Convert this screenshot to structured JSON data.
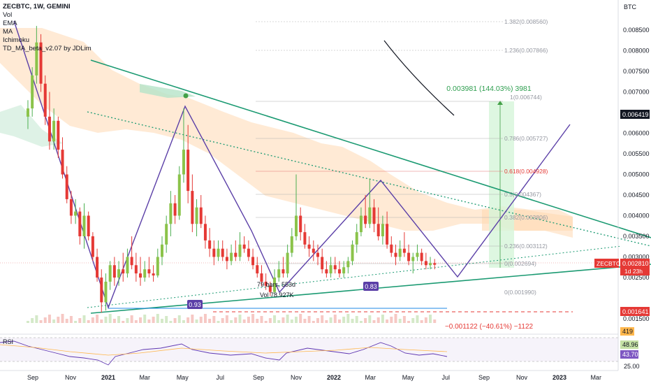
{
  "header": {
    "symbol_line": "ZECBTC, 1W, GEMINI",
    "indicators": [
      "Vol",
      "EMA",
      "MA",
      "Ichimoku",
      "TD_MA_beta_v2.07 by JDLim"
    ]
  },
  "price_axis": {
    "unit": "BTC",
    "ticks": [
      "0.008500",
      "0.008000",
      "0.007500",
      "0.007000",
      "0.006500",
      "0.006000",
      "0.005500",
      "0.005000",
      "0.004500",
      "0.004000",
      "0.003500",
      "0.003000",
      "0.002500",
      "0.001500"
    ]
  },
  "tags": {
    "current_symbol": "ZECBTC",
    "current_price": "0.002810",
    "countdown": "1d 23h",
    "level_high": "0.006419",
    "level_low": "0.001641",
    "vol_ma": "419",
    "rsi_a": "48.96",
    "rsi_b": "43.70",
    "rsi_axis": "25.00"
  },
  "fib_labels": [
    "1.382(0.008560)",
    "1.236(0.007866)",
    "1(0.006744)",
    "0.786(0.005727)",
    "0.618(0.004928)",
    "0.5(0.004367)",
    "0.382(0.003806)",
    "0.236(0.003112)",
    "0(0.002694)",
    "0(0.001990)"
  ],
  "annotations": {
    "measure_up": "0.003981 (144.03%) 3981",
    "measure_down": "−0.001122 (−40.61%) −1122",
    "bars_text": "79 bars, 553d",
    "vol_text": "Vol 78.927K",
    "badge_1": "0.93",
    "badge_2": "0.83",
    "rsi_label": "RSI"
  },
  "time_axis": [
    "Sep",
    "Nov",
    "2021",
    "Mar",
    "May",
    "Jul",
    "Sep",
    "Nov",
    "2022",
    "Mar",
    "May",
    "Jul",
    "Sep",
    "Nov",
    "2023",
    "Mar"
  ],
  "chart_data": {
    "type": "candlestick",
    "title": "ZECBTC, 1W, GEMINI",
    "ylabel": "BTC",
    "ylim": [
      0.0013,
      0.0088
    ],
    "candles": [
      {
        "t": "2020-08-24",
        "o": 0.0064,
        "h": 0.0068,
        "l": 0.0061,
        "c": 0.0066
      },
      {
        "t": "2020-08-31",
        "o": 0.0066,
        "h": 0.0076,
        "l": 0.0064,
        "c": 0.0074
      },
      {
        "t": "2020-09-07",
        "o": 0.0074,
        "h": 0.0086,
        "l": 0.0072,
        "c": 0.0082
      },
      {
        "t": "2020-09-14",
        "o": 0.0082,
        "h": 0.0084,
        "l": 0.007,
        "c": 0.0072
      },
      {
        "t": "2020-09-21",
        "o": 0.0072,
        "h": 0.0074,
        "l": 0.0062,
        "c": 0.0064
      },
      {
        "t": "2020-09-28",
        "o": 0.0064,
        "h": 0.007,
        "l": 0.0056,
        "c": 0.0058
      },
      {
        "t": "2020-10-05",
        "o": 0.0058,
        "h": 0.0066,
        "l": 0.0056,
        "c": 0.0063
      },
      {
        "t": "2020-10-12",
        "o": 0.0063,
        "h": 0.0064,
        "l": 0.0054,
        "c": 0.0056
      },
      {
        "t": "2020-10-19",
        "o": 0.0056,
        "h": 0.0059,
        "l": 0.0049,
        "c": 0.005
      },
      {
        "t": "2020-10-26",
        "o": 0.005,
        "h": 0.0052,
        "l": 0.0043,
        "c": 0.0044
      },
      {
        "t": "2020-11-02",
        "o": 0.0044,
        "h": 0.0046,
        "l": 0.0038,
        "c": 0.004
      },
      {
        "t": "2020-11-09",
        "o": 0.004,
        "h": 0.0044,
        "l": 0.0038,
        "c": 0.0041
      },
      {
        "t": "2020-11-16",
        "o": 0.0041,
        "h": 0.0042,
        "l": 0.0033,
        "c": 0.0035
      },
      {
        "t": "2020-11-23",
        "o": 0.0035,
        "h": 0.0043,
        "l": 0.0032,
        "c": 0.004
      },
      {
        "t": "2020-11-30",
        "o": 0.004,
        "h": 0.0041,
        "l": 0.0034,
        "c": 0.0035
      },
      {
        "t": "2020-12-07",
        "o": 0.0035,
        "h": 0.0036,
        "l": 0.0029,
        "c": 0.003
      },
      {
        "t": "2020-12-14",
        "o": 0.003,
        "h": 0.0032,
        "l": 0.0024,
        "c": 0.0025
      },
      {
        "t": "2020-12-21",
        "o": 0.0025,
        "h": 0.0027,
        "l": 0.00165,
        "c": 0.0019
      },
      {
        "t": "2020-12-28",
        "o": 0.0019,
        "h": 0.0026,
        "l": 0.0017,
        "c": 0.0024
      },
      {
        "t": "2021-01-04",
        "o": 0.0024,
        "h": 0.0029,
        "l": 0.0022,
        "c": 0.0028
      },
      {
        "t": "2021-01-11",
        "o": 0.0028,
        "h": 0.003,
        "l": 0.0023,
        "c": 0.0025
      },
      {
        "t": "2021-01-18",
        "o": 0.0025,
        "h": 0.0029,
        "l": 0.0023,
        "c": 0.0027
      },
      {
        "t": "2021-01-25",
        "o": 0.0027,
        "h": 0.0031,
        "l": 0.0024,
        "c": 0.0026
      },
      {
        "t": "2021-02-01",
        "o": 0.0026,
        "h": 0.0032,
        "l": 0.0025,
        "c": 0.003
      },
      {
        "t": "2021-02-08",
        "o": 0.003,
        "h": 0.0035,
        "l": 0.0027,
        "c": 0.0028
      },
      {
        "t": "2021-02-15",
        "o": 0.0028,
        "h": 0.0031,
        "l": 0.0024,
        "c": 0.0026
      },
      {
        "t": "2021-02-22",
        "o": 0.0026,
        "h": 0.003,
        "l": 0.0023,
        "c": 0.0025
      },
      {
        "t": "2021-03-01",
        "o": 0.0025,
        "h": 0.0029,
        "l": 0.0024,
        "c": 0.0027
      },
      {
        "t": "2021-03-08",
        "o": 0.0027,
        "h": 0.003,
        "l": 0.0025,
        "c": 0.0026
      },
      {
        "t": "2021-03-15",
        "o": 0.0026,
        "h": 0.0028,
        "l": 0.0024,
        "c": 0.00255
      },
      {
        "t": "2021-03-22",
        "o": 0.00255,
        "h": 0.0032,
        "l": 0.0025,
        "c": 0.003
      },
      {
        "t": "2021-03-29",
        "o": 0.003,
        "h": 0.0035,
        "l": 0.0028,
        "c": 0.0033
      },
      {
        "t": "2021-04-05",
        "o": 0.0033,
        "h": 0.004,
        "l": 0.0031,
        "c": 0.0038
      },
      {
        "t": "2021-04-12",
        "o": 0.0038,
        "h": 0.0046,
        "l": 0.0035,
        "c": 0.0043
      },
      {
        "t": "2021-04-19",
        "o": 0.0043,
        "h": 0.0045,
        "l": 0.0038,
        "c": 0.004
      },
      {
        "t": "2021-04-26",
        "o": 0.004,
        "h": 0.0052,
        "l": 0.0039,
        "c": 0.005
      },
      {
        "t": "2021-05-03",
        "o": 0.005,
        "h": 0.0066,
        "l": 0.0048,
        "c": 0.0056
      },
      {
        "t": "2021-05-10",
        "o": 0.0056,
        "h": 0.0062,
        "l": 0.0043,
        "c": 0.0046
      },
      {
        "t": "2021-05-17",
        "o": 0.0046,
        "h": 0.005,
        "l": 0.0036,
        "c": 0.0038
      },
      {
        "t": "2021-05-24",
        "o": 0.0038,
        "h": 0.0044,
        "l": 0.0035,
        "c": 0.0042
      },
      {
        "t": "2021-05-31",
        "o": 0.0042,
        "h": 0.0045,
        "l": 0.0037,
        "c": 0.0038
      },
      {
        "t": "2021-06-07",
        "o": 0.0038,
        "h": 0.004,
        "l": 0.0032,
        "c": 0.0034
      },
      {
        "t": "2021-06-14",
        "o": 0.0034,
        "h": 0.0037,
        "l": 0.003,
        "c": 0.0032
      },
      {
        "t": "2021-06-21",
        "o": 0.0032,
        "h": 0.0034,
        "l": 0.0028,
        "c": 0.003
      },
      {
        "t": "2021-06-28",
        "o": 0.003,
        "h": 0.0034,
        "l": 0.0029,
        "c": 0.0032
      },
      {
        "t": "2021-07-05",
        "o": 0.0032,
        "h": 0.0034,
        "l": 0.0029,
        "c": 0.003
      },
      {
        "t": "2021-07-12",
        "o": 0.003,
        "h": 0.0032,
        "l": 0.0027,
        "c": 0.0029
      },
      {
        "t": "2021-07-19",
        "o": 0.0029,
        "h": 0.0033,
        "l": 0.0028,
        "c": 0.0031
      },
      {
        "t": "2021-07-26",
        "o": 0.0031,
        "h": 0.0034,
        "l": 0.0029,
        "c": 0.003
      },
      {
        "t": "2021-08-02",
        "o": 0.003,
        "h": 0.0036,
        "l": 0.0029,
        "c": 0.0033
      },
      {
        "t": "2021-08-09",
        "o": 0.0033,
        "h": 0.0035,
        "l": 0.0031,
        "c": 0.0032
      },
      {
        "t": "2021-08-16",
        "o": 0.0032,
        "h": 0.0034,
        "l": 0.0029,
        "c": 0.003
      },
      {
        "t": "2021-08-23",
        "o": 0.003,
        "h": 0.0032,
        "l": 0.0027,
        "c": 0.0028
      },
      {
        "t": "2021-08-30",
        "o": 0.0028,
        "h": 0.003,
        "l": 0.0025,
        "c": 0.0026
      },
      {
        "t": "2021-09-06",
        "o": 0.0026,
        "h": 0.0028,
        "l": 0.0023,
        "c": 0.0024
      },
      {
        "t": "2021-09-13",
        "o": 0.0024,
        "h": 0.0026,
        "l": 0.0022,
        "c": 0.0023
      },
      {
        "t": "2021-09-20",
        "o": 0.0023,
        "h": 0.0024,
        "l": 0.00205,
        "c": 0.00215
      },
      {
        "t": "2021-09-27",
        "o": 0.00215,
        "h": 0.0027,
        "l": 0.0021,
        "c": 0.0025
      },
      {
        "t": "2021-10-04",
        "o": 0.0025,
        "h": 0.0029,
        "l": 0.0024,
        "c": 0.0027
      },
      {
        "t": "2021-10-11",
        "o": 0.0027,
        "h": 0.003,
        "l": 0.0025,
        "c": 0.0026
      },
      {
        "t": "2021-10-18",
        "o": 0.0026,
        "h": 0.0033,
        "l": 0.0025,
        "c": 0.0031
      },
      {
        "t": "2021-10-25",
        "o": 0.0031,
        "h": 0.0037,
        "l": 0.003,
        "c": 0.0035
      },
      {
        "t": "2021-11-01",
        "o": 0.0035,
        "h": 0.005,
        "l": 0.0034,
        "c": 0.004
      },
      {
        "t": "2021-11-08",
        "o": 0.004,
        "h": 0.0042,
        "l": 0.0034,
        "c": 0.0036
      },
      {
        "t": "2021-11-15",
        "o": 0.0036,
        "h": 0.0038,
        "l": 0.0032,
        "c": 0.0033
      },
      {
        "t": "2021-11-22",
        "o": 0.0033,
        "h": 0.0035,
        "l": 0.003,
        "c": 0.0032
      },
      {
        "t": "2021-11-29",
        "o": 0.0032,
        "h": 0.0034,
        "l": 0.0029,
        "c": 0.0031
      },
      {
        "t": "2021-12-06",
        "o": 0.0031,
        "h": 0.0033,
        "l": 0.0028,
        "c": 0.003
      },
      {
        "t": "2021-12-13",
        "o": 0.003,
        "h": 0.0032,
        "l": 0.0026,
        "c": 0.0027
      },
      {
        "t": "2021-12-20",
        "o": 0.0027,
        "h": 0.0029,
        "l": 0.0025,
        "c": 0.0026
      },
      {
        "t": "2021-12-27",
        "o": 0.0026,
        "h": 0.003,
        "l": 0.0025,
        "c": 0.0028
      },
      {
        "t": "2022-01-03",
        "o": 0.0028,
        "h": 0.003,
        "l": 0.0026,
        "c": 0.0027
      },
      {
        "t": "2022-01-10",
        "o": 0.0027,
        "h": 0.0029,
        "l": 0.0025,
        "c": 0.0026
      },
      {
        "t": "2022-01-17",
        "o": 0.0026,
        "h": 0.0029,
        "l": 0.0025,
        "c": 0.00275
      },
      {
        "t": "2022-01-24",
        "o": 0.00275,
        "h": 0.003,
        "l": 0.0026,
        "c": 0.0029
      },
      {
        "t": "2022-01-31",
        "o": 0.0029,
        "h": 0.0034,
        "l": 0.0028,
        "c": 0.0033
      },
      {
        "t": "2022-02-07",
        "o": 0.0033,
        "h": 0.0038,
        "l": 0.0031,
        "c": 0.0036
      },
      {
        "t": "2022-02-14",
        "o": 0.0036,
        "h": 0.0042,
        "l": 0.0035,
        "c": 0.004
      },
      {
        "t": "2022-02-21",
        "o": 0.004,
        "h": 0.0045,
        "l": 0.0037,
        "c": 0.0038
      },
      {
        "t": "2022-02-28",
        "o": 0.0038,
        "h": 0.0049,
        "l": 0.0037,
        "c": 0.0042
      },
      {
        "t": "2022-03-07",
        "o": 0.0042,
        "h": 0.0044,
        "l": 0.0036,
        "c": 0.0038
      },
      {
        "t": "2022-03-14",
        "o": 0.0038,
        "h": 0.0042,
        "l": 0.0034,
        "c": 0.0035
      },
      {
        "t": "2022-03-21",
        "o": 0.0035,
        "h": 0.004,
        "l": 0.0033,
        "c": 0.0038
      },
      {
        "t": "2022-03-28",
        "o": 0.0038,
        "h": 0.0041,
        "l": 0.0032,
        "c": 0.0033
      },
      {
        "t": "2022-04-04",
        "o": 0.0033,
        "h": 0.0035,
        "l": 0.003,
        "c": 0.0031
      },
      {
        "t": "2022-04-11",
        "o": 0.0031,
        "h": 0.0033,
        "l": 0.0028,
        "c": 0.003
      },
      {
        "t": "2022-04-18",
        "o": 0.003,
        "h": 0.0034,
        "l": 0.0029,
        "c": 0.0032
      },
      {
        "t": "2022-04-25",
        "o": 0.0032,
        "h": 0.0036,
        "l": 0.003,
        "c": 0.0031
      },
      {
        "t": "2022-05-02",
        "o": 0.0031,
        "h": 0.0033,
        "l": 0.0028,
        "c": 0.0029
      },
      {
        "t": "2022-05-09",
        "o": 0.0029,
        "h": 0.0031,
        "l": 0.0026,
        "c": 0.003
      },
      {
        "t": "2022-05-16",
        "o": 0.003,
        "h": 0.0033,
        "l": 0.0029,
        "c": 0.0031
      },
      {
        "t": "2022-05-23",
        "o": 0.0031,
        "h": 0.0032,
        "l": 0.0028,
        "c": 0.0029
      },
      {
        "t": "2022-05-30",
        "o": 0.0029,
        "h": 0.0031,
        "l": 0.0027,
        "c": 0.0028
      },
      {
        "t": "2022-06-06",
        "o": 0.0028,
        "h": 0.003,
        "l": 0.0027,
        "c": 0.00285
      },
      {
        "t": "2022-06-13",
        "o": 0.00285,
        "h": 0.00295,
        "l": 0.0027,
        "c": 0.00281
      }
    ],
    "price_lines": [
      {
        "label": "ZECBTC",
        "value": 0.00281
      },
      {
        "label": "level_high",
        "value": 0.006419
      },
      {
        "label": "level_low",
        "value": 0.001641
      }
    ]
  }
}
